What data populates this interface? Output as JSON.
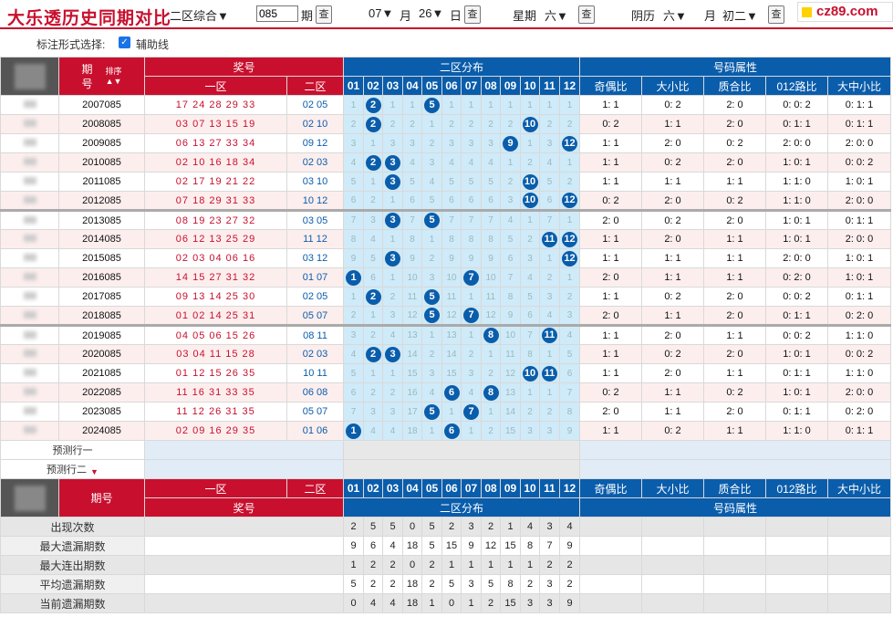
{
  "header": {
    "title": "大乐透历史同期对比",
    "zone_select": "二区综合",
    "issue_value": "085",
    "issue_unit": "期",
    "query": "查",
    "month_value": "07",
    "month_unit": "月",
    "day_value": "26",
    "day_unit": "日",
    "week_label": "星期",
    "week_value": "六",
    "lunar_label": "阴历",
    "lunar_month": "六",
    "lunar_month_unit": "月",
    "lunar_day": "初二",
    "logo": "cz89.com"
  },
  "options": {
    "label": "标注形式选择:",
    "aux_label": "辅助线"
  },
  "table_head": {
    "issue": "期号",
    "sort": "排序",
    "prize": "奖号",
    "zone1": "一区",
    "zone2": "二区",
    "dist": "二区分布",
    "attr": "号码属性",
    "nums": [
      "01",
      "02",
      "03",
      "04",
      "05",
      "06",
      "07",
      "08",
      "09",
      "10",
      "11",
      "12"
    ],
    "attr_cols": [
      "奇偶比",
      "大小比",
      "质合比",
      "012路比",
      "大中小比"
    ]
  },
  "rows": [
    {
      "issue": "2007085",
      "front": "17 24 28 29 33",
      "back": "02 05",
      "dist": [
        "1",
        "2",
        "1",
        "1",
        "5",
        "1",
        "1",
        "1",
        "1",
        "1",
        "1",
        "1"
      ],
      "balls": [
        2,
        5
      ],
      "attrs": [
        "1: 1",
        "0: 2",
        "2: 0",
        "0: 0: 2",
        "0: 1: 1"
      ]
    },
    {
      "issue": "2008085",
      "front": "03 07 13 15 19",
      "back": "02 10",
      "dist": [
        "2",
        "2",
        "2",
        "2",
        "1",
        "2",
        "2",
        "2",
        "2",
        "10",
        "2",
        "2"
      ],
      "balls": [
        2,
        10
      ],
      "attrs": [
        "0: 2",
        "1: 1",
        "2: 0",
        "0: 1: 1",
        "0: 1: 1"
      ]
    },
    {
      "issue": "2009085",
      "front": "06 13 27 33 34",
      "back": "09 12",
      "dist": [
        "3",
        "1",
        "3",
        "3",
        "2",
        "3",
        "3",
        "3",
        "9",
        "1",
        "3",
        "12"
      ],
      "balls": [
        9,
        12
      ],
      "attrs": [
        "1: 1",
        "2: 0",
        "0: 2",
        "2: 0: 0",
        "2: 0: 0"
      ]
    },
    {
      "issue": "2010085",
      "front": "02 10 16 18 34",
      "back": "02 03",
      "dist": [
        "4",
        "2",
        "3",
        "4",
        "3",
        "4",
        "4",
        "4",
        "1",
        "2",
        "4",
        "1"
      ],
      "balls": [
        2,
        3
      ],
      "attrs": [
        "1: 1",
        "0: 2",
        "2: 0",
        "1: 0: 1",
        "0: 0: 2"
      ]
    },
    {
      "issue": "2011085",
      "front": "02 17 19 21 22",
      "back": "03 10",
      "dist": [
        "5",
        "1",
        "3",
        "5",
        "4",
        "5",
        "5",
        "5",
        "2",
        "10",
        "5",
        "2"
      ],
      "balls": [
        3,
        10
      ],
      "attrs": [
        "1: 1",
        "1: 1",
        "1: 1",
        "1: 1: 0",
        "1: 0: 1"
      ]
    },
    {
      "issue": "2012085",
      "front": "07 18 29 31 33",
      "back": "10 12",
      "dist": [
        "6",
        "2",
        "1",
        "6",
        "5",
        "6",
        "6",
        "6",
        "3",
        "10",
        "6",
        "12"
      ],
      "balls": [
        10,
        12
      ],
      "attrs": [
        "0: 2",
        "2: 0",
        "0: 2",
        "1: 1: 0",
        "2: 0: 0"
      ]
    },
    {
      "issue": "2013085",
      "front": "08 19 23 27 32",
      "back": "03 05",
      "dist": [
        "7",
        "3",
        "3",
        "7",
        "5",
        "7",
        "7",
        "7",
        "4",
        "1",
        "7",
        "1"
      ],
      "balls": [
        3,
        5
      ],
      "attrs": [
        "2: 0",
        "0: 2",
        "2: 0",
        "1: 0: 1",
        "0: 1: 1"
      ]
    },
    {
      "issue": "2014085",
      "front": "06 12 13 25 29",
      "back": "11 12",
      "dist": [
        "8",
        "4",
        "1",
        "8",
        "1",
        "8",
        "8",
        "8",
        "5",
        "2",
        "11",
        "12"
      ],
      "balls": [
        11,
        12
      ],
      "attrs": [
        "1: 1",
        "2: 0",
        "1: 1",
        "1: 0: 1",
        "2: 0: 0"
      ]
    },
    {
      "issue": "2015085",
      "front": "02 03 04 06 16",
      "back": "03 12",
      "dist": [
        "9",
        "5",
        "3",
        "9",
        "2",
        "9",
        "9",
        "9",
        "6",
        "3",
        "1",
        "12"
      ],
      "balls": [
        3,
        12
      ],
      "attrs": [
        "1: 1",
        "1: 1",
        "1: 1",
        "2: 0: 0",
        "1: 0: 1"
      ]
    },
    {
      "issue": "2016085",
      "front": "14 15 27 31 32",
      "back": "01 07",
      "dist": [
        "1",
        "6",
        "1",
        "10",
        "3",
        "10",
        "7",
        "10",
        "7",
        "4",
        "2",
        "1"
      ],
      "balls": [
        1,
        7
      ],
      "attrs": [
        "2: 0",
        "1: 1",
        "1: 1",
        "0: 2: 0",
        "1: 0: 1"
      ]
    },
    {
      "issue": "2017085",
      "front": "09 13 14 25 30",
      "back": "02 05",
      "dist": [
        "1",
        "2",
        "2",
        "11",
        "5",
        "11",
        "1",
        "11",
        "8",
        "5",
        "3",
        "2"
      ],
      "balls": [
        2,
        5
      ],
      "attrs": [
        "1: 1",
        "0: 2",
        "2: 0",
        "0: 0: 2",
        "0: 1: 1"
      ]
    },
    {
      "issue": "2018085",
      "front": "01 02 14 25 31",
      "back": "05 07",
      "dist": [
        "2",
        "1",
        "3",
        "12",
        "5",
        "12",
        "7",
        "12",
        "9",
        "6",
        "4",
        "3"
      ],
      "balls": [
        5,
        7
      ],
      "attrs": [
        "2: 0",
        "1: 1",
        "2: 0",
        "0: 1: 1",
        "0: 2: 0"
      ]
    },
    {
      "issue": "2019085",
      "front": "04 05 06 15 26",
      "back": "08 11",
      "dist": [
        "3",
        "2",
        "4",
        "13",
        "1",
        "13",
        "1",
        "8",
        "10",
        "7",
        "11",
        "4"
      ],
      "balls": [
        8,
        11
      ],
      "attrs": [
        "1: 1",
        "2: 0",
        "1: 1",
        "0: 0: 2",
        "1: 1: 0"
      ]
    },
    {
      "issue": "2020085",
      "front": "03 04 11 15 28",
      "back": "02 03",
      "dist": [
        "4",
        "2",
        "3",
        "14",
        "2",
        "14",
        "2",
        "1",
        "11",
        "8",
        "1",
        "5"
      ],
      "balls": [
        2,
        3
      ],
      "attrs": [
        "1: 1",
        "0: 2",
        "2: 0",
        "1: 0: 1",
        "0: 0: 2"
      ]
    },
    {
      "issue": "2021085",
      "front": "01 12 15 26 35",
      "back": "10 11",
      "dist": [
        "5",
        "1",
        "1",
        "15",
        "3",
        "15",
        "3",
        "2",
        "12",
        "10",
        "11",
        "6"
      ],
      "balls": [
        10,
        11
      ],
      "attrs": [
        "1: 1",
        "2: 0",
        "1: 1",
        "0: 1: 1",
        "1: 1: 0"
      ]
    },
    {
      "issue": "2022085",
      "front": "11 16 31 33 35",
      "back": "06 08",
      "dist": [
        "6",
        "2",
        "2",
        "16",
        "4",
        "6",
        "4",
        "8",
        "13",
        "1",
        "1",
        "7"
      ],
      "balls": [
        6,
        8
      ],
      "attrs": [
        "0: 2",
        "1: 1",
        "0: 2",
        "1: 0: 1",
        "2: 0: 0"
      ]
    },
    {
      "issue": "2023085",
      "front": "11 12 26 31 35",
      "back": "05 07",
      "dist": [
        "7",
        "3",
        "3",
        "17",
        "5",
        "1",
        "7",
        "1",
        "14",
        "2",
        "2",
        "8"
      ],
      "balls": [
        5,
        7
      ],
      "attrs": [
        "2: 0",
        "1: 1",
        "2: 0",
        "0: 1: 1",
        "0: 2: 0"
      ]
    },
    {
      "issue": "2024085",
      "front": "02 09 16 29 35",
      "back": "01 06",
      "dist": [
        "1",
        "4",
        "4",
        "18",
        "1",
        "6",
        "1",
        "2",
        "15",
        "3",
        "3",
        "9"
      ],
      "balls": [
        1,
        6
      ],
      "attrs": [
        "1: 1",
        "0: 2",
        "1: 1",
        "1: 1: 0",
        "0: 1: 1"
      ]
    }
  ],
  "predict": [
    "预测行一",
    "预测行二"
  ],
  "foot_head": {
    "issue": "期号",
    "zone1": "一区",
    "zone2": "二区",
    "prize": "奖号",
    "dist": "二区分布",
    "attr": "号码属性"
  },
  "stats": [
    {
      "label": "出现次数",
      "values": [
        "2",
        "5",
        "5",
        "0",
        "5",
        "2",
        "3",
        "2",
        "1",
        "4",
        "3",
        "4"
      ]
    },
    {
      "label": "最大遗漏期数",
      "values": [
        "9",
        "6",
        "4",
        "18",
        "5",
        "15",
        "9",
        "12",
        "15",
        "8",
        "7",
        "9"
      ]
    },
    {
      "label": "最大连出期数",
      "values": [
        "1",
        "2",
        "2",
        "0",
        "2",
        "1",
        "1",
        "1",
        "1",
        "1",
        "2",
        "2"
      ]
    },
    {
      "label": "平均遗漏期数",
      "values": [
        "5",
        "2",
        "2",
        "18",
        "2",
        "5",
        "3",
        "5",
        "8",
        "2",
        "3",
        "2"
      ]
    },
    {
      "label": "当前遗漏期数",
      "values": [
        "0",
        "4",
        "4",
        "18",
        "1",
        "0",
        "1",
        "2",
        "15",
        "3",
        "3",
        "9"
      ]
    }
  ]
}
